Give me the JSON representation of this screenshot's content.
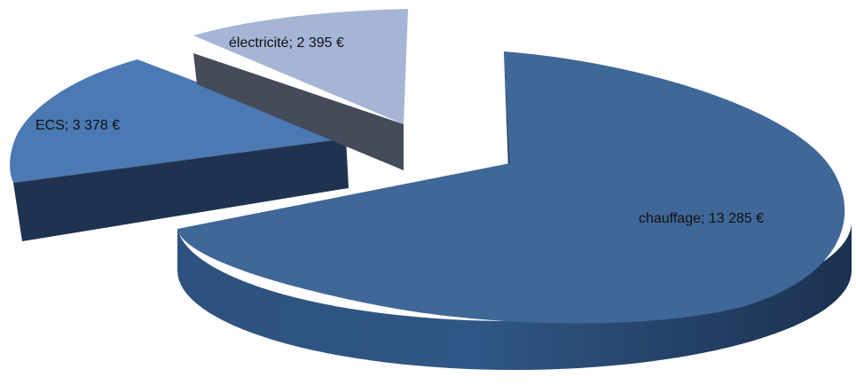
{
  "chart_data": {
    "type": "pie",
    "style": "3d-exploded",
    "title": "",
    "slices": [
      {
        "category": "chauffage",
        "value": 13285,
        "label": "chauffage; 13 285 €",
        "color": "#3f6798",
        "side_color": "#213a5c"
      },
      {
        "category": "ECS",
        "value": 3378,
        "label": "ECS; 3 378 €",
        "color": "#4a79b4",
        "side_color": "#1f3350"
      },
      {
        "category": "électricité",
        "value": 2395,
        "label": "électricité; 2 395 €",
        "color": "#a6b5d6",
        "side_color": "#454b59"
      }
    ],
    "currency": "€"
  }
}
